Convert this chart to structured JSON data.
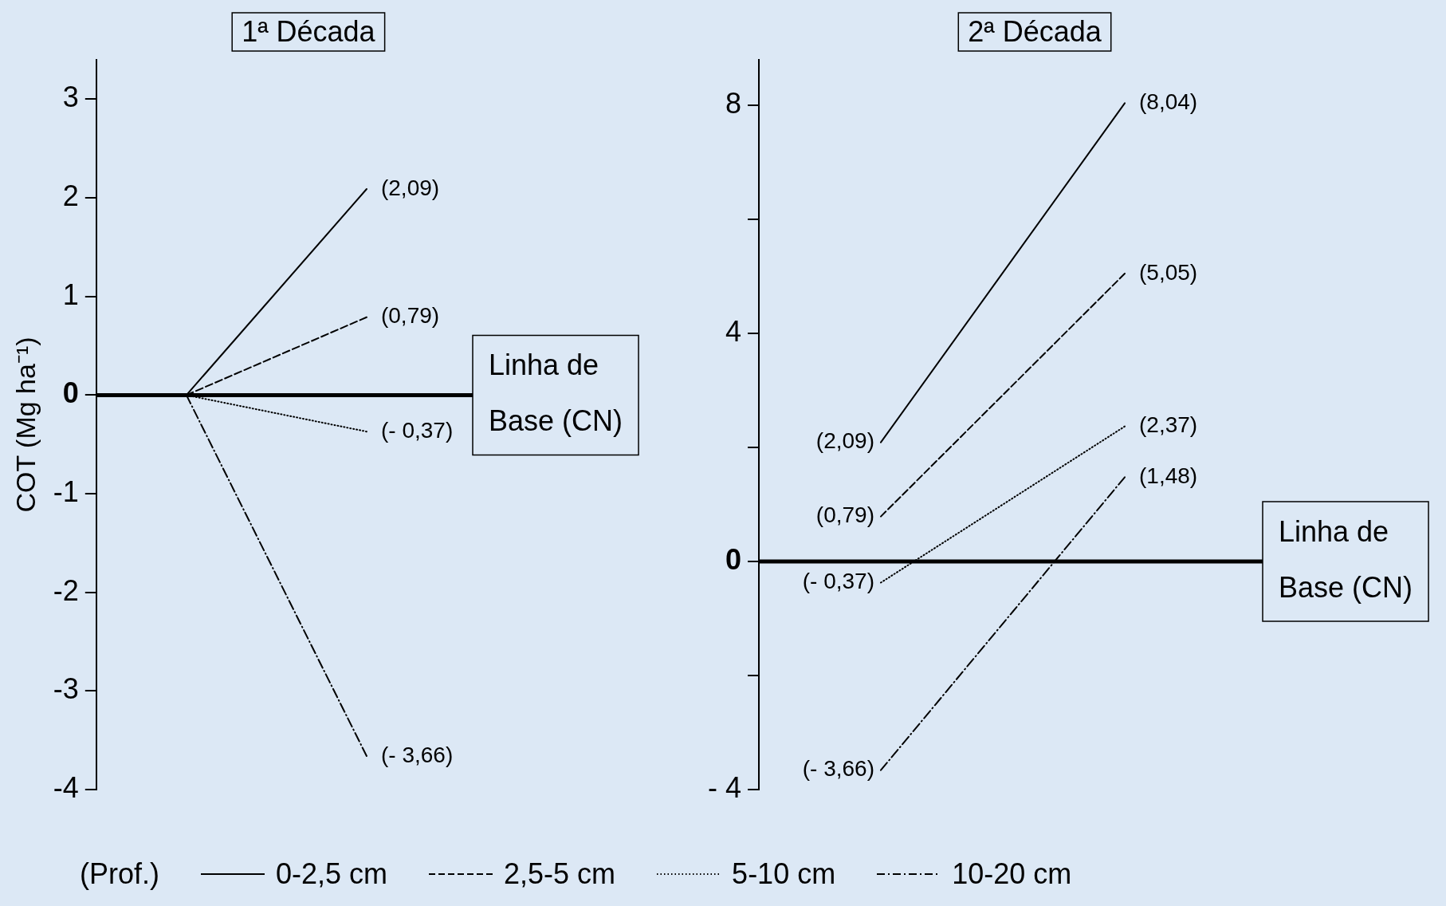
{
  "chart_data": [
    {
      "type": "line",
      "title": "1ª Década",
      "ylabel": "COT (Mg ha⁻¹)",
      "legend_title": "(Prof.)",
      "legend": "bottom",
      "tick_labels": "y",
      "categories": [
        null,
        null
      ],
      "ylim": [
        -4,
        3.4
      ],
      "yticks": [
        -4,
        -3,
        -2,
        -1,
        0,
        1,
        2,
        3
      ],
      "series": [
        {
          "name": "0-2,5 cm",
          "color": "#000000",
          "line_style": "solid",
          "values": [
            0,
            2.09
          ],
          "value_labels": [
            null,
            "(2,09)"
          ]
        },
        {
          "name": "2,5-5 cm",
          "color": "#000000",
          "line_style": "dashed",
          "values": [
            0,
            0.79
          ],
          "value_labels": [
            null,
            "(0,79)"
          ]
        },
        {
          "name": "5-10 cm",
          "color": "#000000",
          "line_style": "dotted",
          "values": [
            0,
            -0.37
          ],
          "value_labels": [
            null,
            "(- 0,37)"
          ]
        },
        {
          "name": "10-20 cm",
          "color": "#000000",
          "line_style": "dashdot",
          "values": [
            0,
            -3.66
          ],
          "value_labels": [
            null,
            "(- 3,66)"
          ]
        }
      ],
      "ref_lines": [
        {
          "axis": "y",
          "value": 0,
          "label": "Linha de Base (CN)",
          "color": "#000000"
        }
      ]
    },
    {
      "type": "line",
      "title": "2ª Década",
      "tick_labels": "y",
      "categories": [
        null,
        null
      ],
      "ylim": [
        -4,
        8.8
      ],
      "yticks": [
        {
          "value": -4,
          "label": "- 4"
        },
        {
          "value": -2,
          "label": null
        },
        0,
        {
          "value": 2,
          "label": null
        },
        4,
        {
          "value": 6,
          "label": null
        },
        8
      ],
      "series": [
        {
          "color": "#000000",
          "line_style": "solid",
          "values": [
            2.09,
            8.04
          ],
          "value_labels": [
            "(2,09)",
            "(8,04)"
          ]
        },
        {
          "color": "#000000",
          "line_style": "dashed",
          "values": [
            0.79,
            5.05
          ],
          "value_labels": [
            "(0,79)",
            "(5,05)"
          ]
        },
        {
          "color": "#000000",
          "line_style": "dotted",
          "values": [
            -0.37,
            2.37
          ],
          "value_labels": [
            "(- 0,37)",
            "(2,37)"
          ]
        },
        {
          "color": "#000000",
          "line_style": "dashdot",
          "values": [
            -3.66,
            1.48
          ],
          "value_labels": [
            "(- 3,66)",
            "(1,48)"
          ]
        }
      ],
      "ref_lines": [
        {
          "axis": "y",
          "value": 0,
          "label": "Linha de Base (CN)",
          "color": "#000000"
        }
      ]
    }
  ]
}
